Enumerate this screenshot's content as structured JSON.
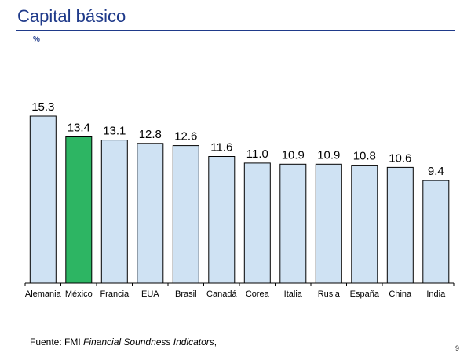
{
  "header": {
    "title": "Capital básico",
    "unit": "%"
  },
  "footer": {
    "source_prefix": "Fuente: FMI ",
    "source_italic": "Financial Soundness Indicators",
    "source_suffix": ",",
    "page_number": "9"
  },
  "colors": {
    "title": "#1f3a8a",
    "bar_default": "#cfe2f3",
    "bar_highlight": "#2db563",
    "bar_outline": "#000000"
  },
  "chart_data": {
    "type": "bar",
    "title": "Capital básico",
    "ylabel": "%",
    "xlabel": "",
    "categories": [
      "Alemania",
      "México",
      "Francia",
      "EUA",
      "Brasil",
      "Canadá",
      "Corea",
      "Italia",
      "Rusia",
      "España",
      "China",
      "India"
    ],
    "values": [
      15.3,
      13.4,
      13.1,
      12.8,
      12.6,
      11.6,
      11.0,
      10.9,
      10.9,
      10.8,
      10.6,
      9.4
    ],
    "value_labels": [
      "15.3",
      "13.4",
      "13.1",
      "12.8",
      "12.6",
      "11.6",
      "11.0",
      "10.9",
      "10.9",
      "10.8",
      "10.6",
      "9.4"
    ],
    "highlight": "México",
    "ylim": [
      0,
      15.3
    ],
    "grid": false,
    "legend": "none"
  }
}
